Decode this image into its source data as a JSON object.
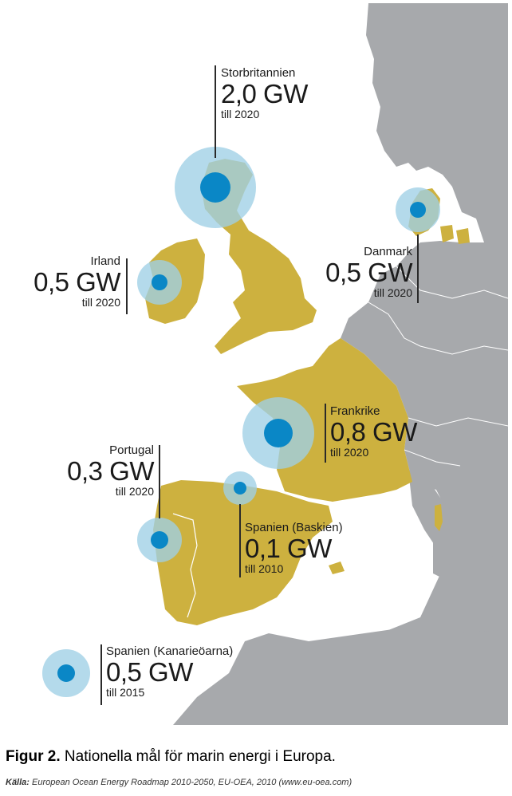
{
  "colors": {
    "sea": "#ffffff",
    "land_other": "#a7a9ac",
    "land_target": "#cdb13f",
    "border": "#ffffff",
    "circle_outer": "#9fcfe6",
    "circle_inner": "#0a87c6"
  },
  "targets": [
    {
      "id": "storbritannien",
      "country": "Storbritannien",
      "value": "2,0 GW",
      "year": "till 2020",
      "capacity_gw": 2.0
    },
    {
      "id": "irland",
      "country": "Irland",
      "value": "0,5 GW",
      "year": "till 2020",
      "capacity_gw": 0.5
    },
    {
      "id": "danmark",
      "country": "Danmark",
      "value": "0,5 GW",
      "year": "till 2020",
      "capacity_gw": 0.5
    },
    {
      "id": "frankrike",
      "country": "Frankrike",
      "value": "0,8 GW",
      "year": "till 2020",
      "capacity_gw": 0.8
    },
    {
      "id": "portugal",
      "country": "Portugal",
      "value": "0,3 GW",
      "year": "till 2020",
      "capacity_gw": 0.3
    },
    {
      "id": "baskien",
      "country": "Spanien (Baskien)",
      "value": "0,1 GW",
      "year": "till 2010",
      "capacity_gw": 0.1
    },
    {
      "id": "kanarieoarna",
      "country": "Spanien (Kanarieöarna)",
      "value": "0,5 GW",
      "year": "till 2015",
      "capacity_gw": 0.5
    }
  ],
  "caption": {
    "figure": "Figur 2.",
    "text": " Nationella mål för marin energi i Europa."
  },
  "source": {
    "label": "Källa:",
    "text": " European Ocean Energy Roadmap 2010-2050, EU-OEA, 2010 (www.eu-oea.com)"
  }
}
